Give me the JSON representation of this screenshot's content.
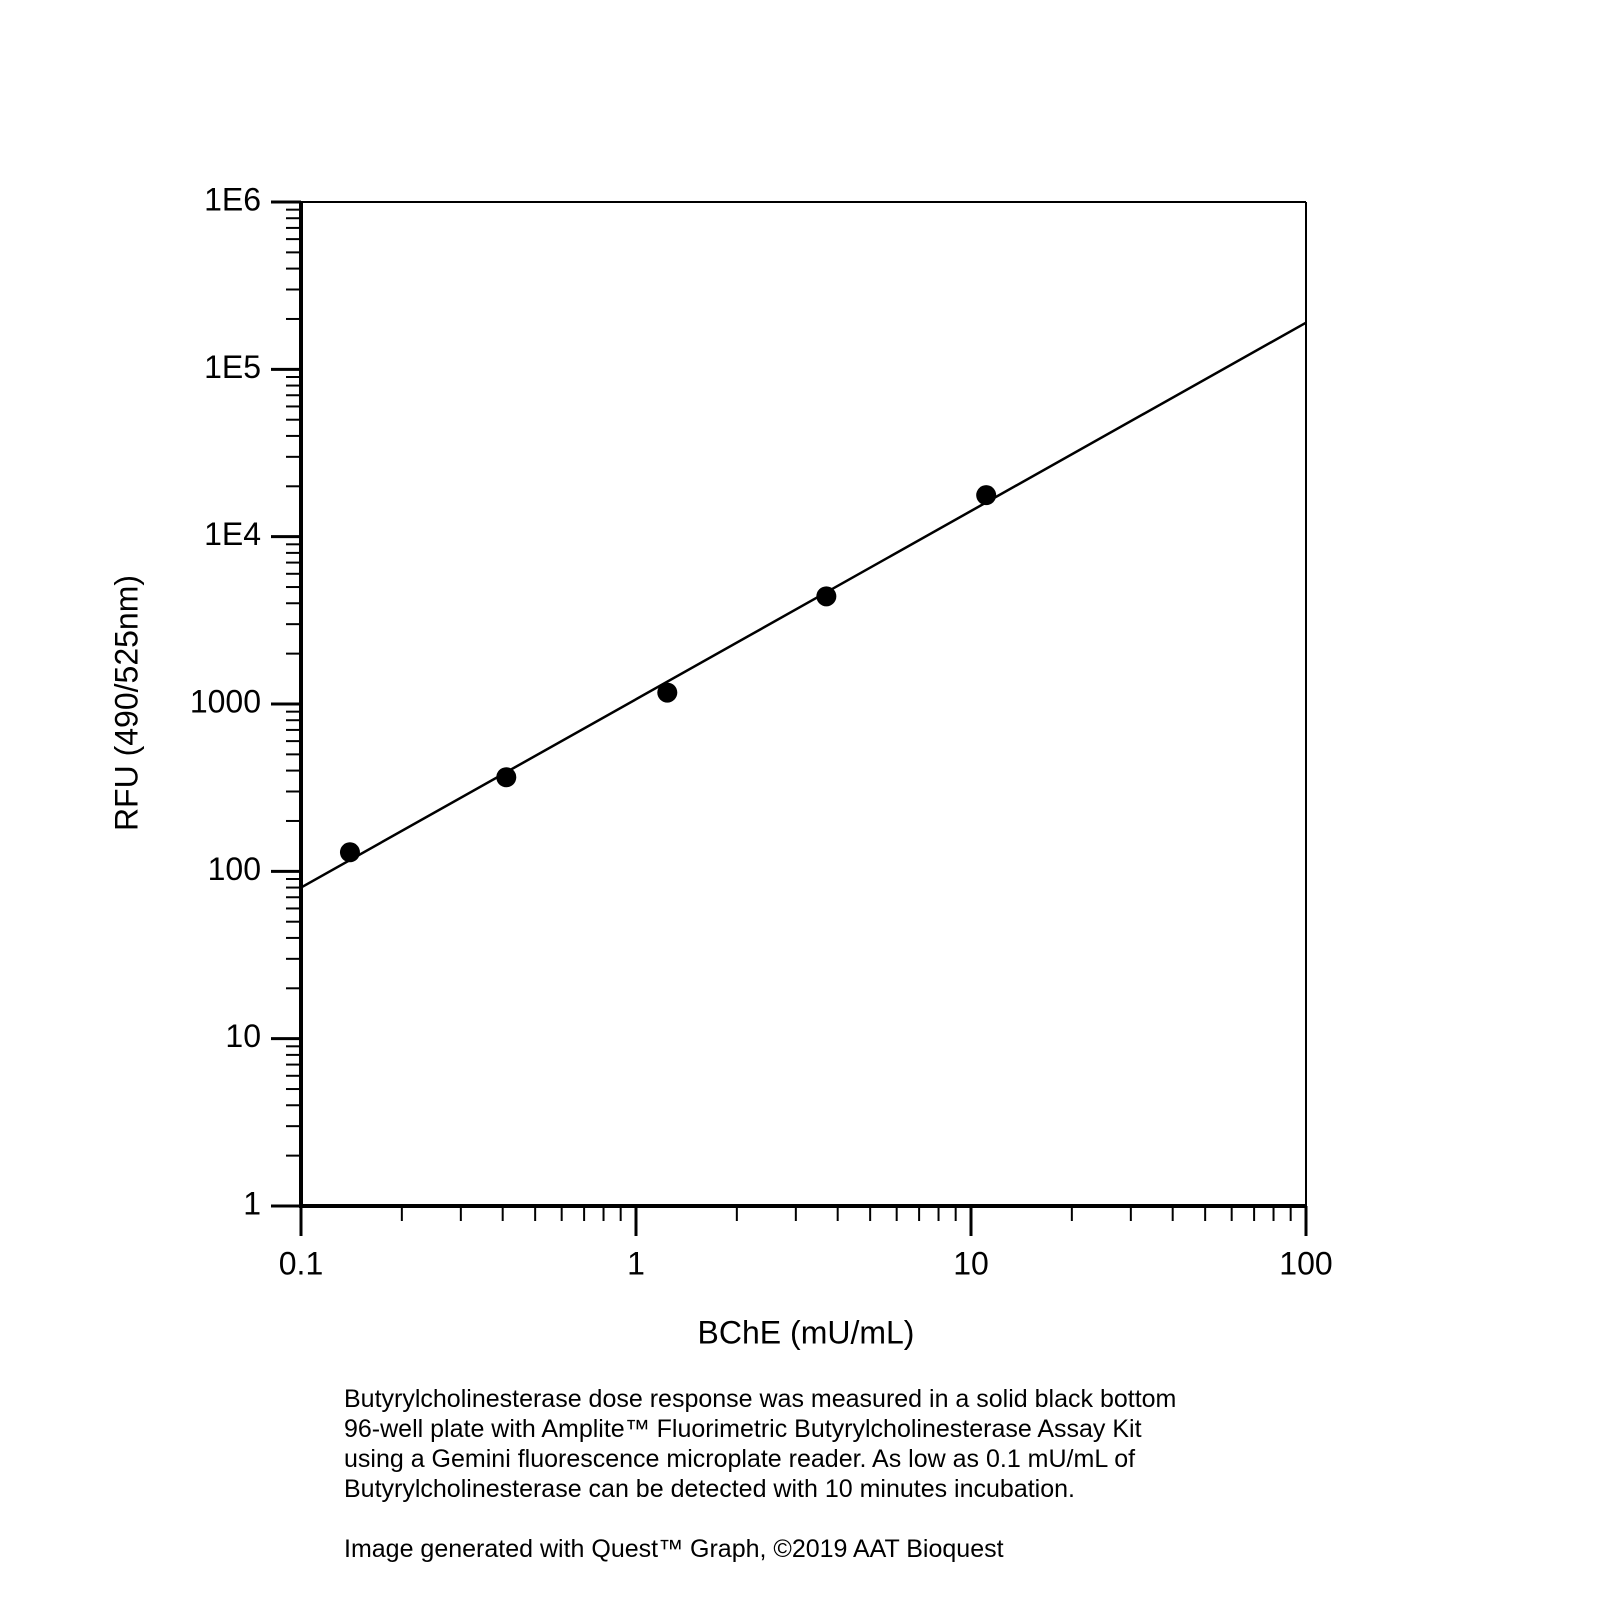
{
  "chart_data": {
    "type": "scatter",
    "x_label": "BChE (mU/mL)",
    "y_label": "RFU (490/525nm)",
    "xscale": "log",
    "yscale": "log",
    "xlim": [
      0.1,
      100
    ],
    "ylim": [
      1,
      1000000
    ],
    "xticks": [
      0.1,
      1,
      10,
      100
    ],
    "yticks": [
      1,
      10,
      100,
      1000,
      {
        "value": 10000,
        "label": "1E4"
      },
      {
        "value": 100000,
        "label": "1E5"
      },
      {
        "value": 1000000,
        "label": "1E6"
      }
    ],
    "color": "#000000",
    "series": [
      {
        "mode": "markers",
        "x": [
          0.14,
          0.41,
          1.24,
          3.7,
          11.1
        ],
        "values": [
          130,
          365,
          1170,
          4400,
          17700
        ]
      },
      {
        "mode": "line",
        "x": [
          0.1,
          100
        ],
        "values": [
          80,
          190000
        ]
      }
    ]
  },
  "caption": [
    "Butyrylcholinesterase dose response was measured in a solid black bottom",
    "96-well plate with Amplite™ Fluorimetric Butyrylcholinesterase Assay Kit",
    "using a Gemini fluorescence microplate reader. As low as 0.1 mU/mL of",
    "Butyrylcholinesterase can be detected with 10 minutes incubation."
  ],
  "footer": "Image generated with Quest™ Graph, ©2019 AAT Bioquest"
}
